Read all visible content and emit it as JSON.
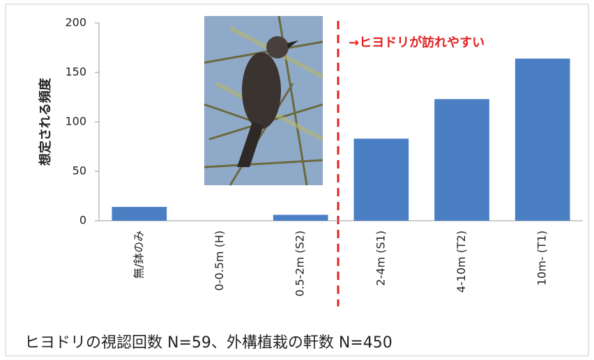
{
  "chart_data": {
    "type": "bar",
    "ylabel": "想定される頻度",
    "annotation": "→ヒヨドリが訪れやすい",
    "caption": "ヒヨドリの視認回数 N=59、外構植栽の軒数 N=450",
    "categories": [
      "無/鉢のみ",
      "0-0.5m (H)",
      "0.5-2m (S2)",
      "2-4m (S1)",
      "4-10m (T2)",
      "10m- (T1)"
    ],
    "values": [
      14,
      0,
      6,
      83,
      123,
      164
    ],
    "color": "#4a7fc4",
    "ylim": [
      0,
      200
    ],
    "yticks": [
      0,
      50,
      100,
      150,
      200
    ],
    "grid": false
  }
}
